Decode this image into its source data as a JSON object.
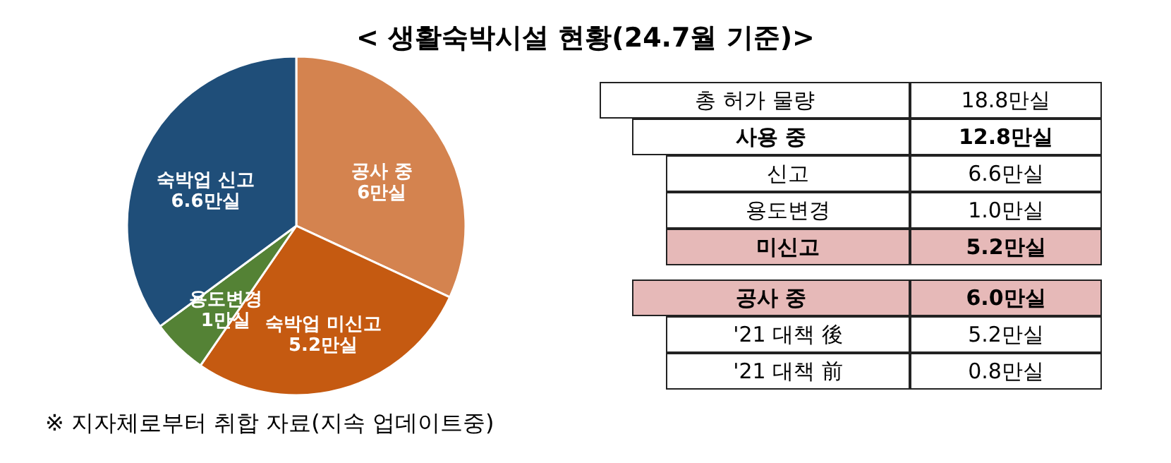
{
  "chart_data": [
    {
      "type": "pie",
      "title": "< 생활숙박시설 현황(24.7월 기준)>",
      "categories": [
        "공사 중",
        "숙박업 미신고",
        "용도변경",
        "숙박업 신고"
      ],
      "values": [
        6,
        5.2,
        1,
        6.6
      ],
      "value_labels": [
        "6만실",
        "5.2만실",
        "1만실",
        "6.6만실"
      ],
      "colors": [
        "#d4834f",
        "#c55a11",
        "#548235",
        "#1f4e79"
      ],
      "annotations": [
        "※ 지자체로부터 취합 자료(지속 업데이트중)"
      ]
    },
    {
      "type": "other",
      "annotations": [
        "총 허가 물량",
        "18.8만실",
        "사용 중",
        "12.8만실",
        "신고",
        "6.6만실",
        "용도변경",
        "1.0만실",
        "미신고",
        "5.2만실",
        "공사 중",
        "6.0만실",
        "'21 대책 後",
        "5.2만실",
        "'21 대책 前",
        "0.8만실"
      ]
    }
  ]
}
